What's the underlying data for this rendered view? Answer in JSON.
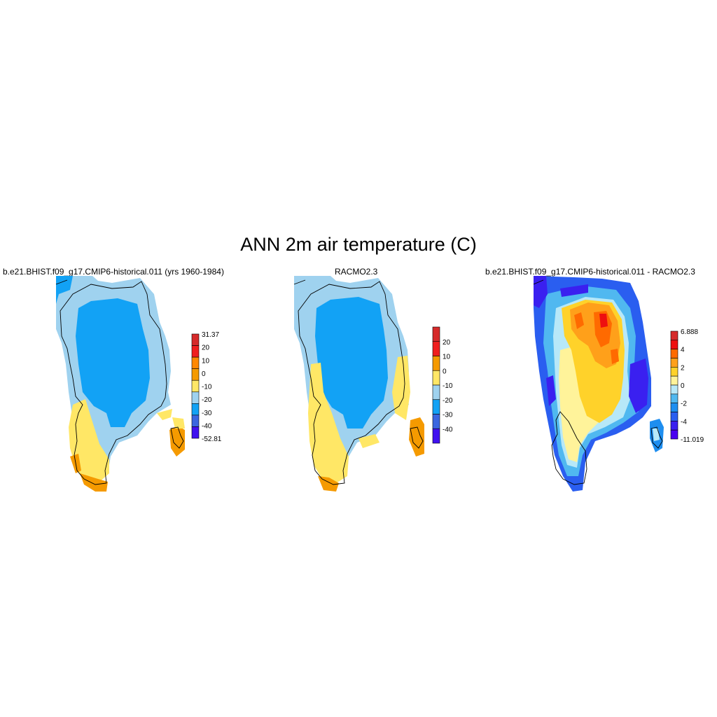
{
  "figure": {
    "title": "ANN 2m air temperature (C)"
  },
  "panels": [
    {
      "title": "b.e21.BHIST.f09_g17.CMIP6-historical.011 (yrs 1960-1984)",
      "colorbar": {
        "labels": [
          "31.37",
          "20",
          "10",
          "0",
          "-10",
          "-20",
          "-30",
          "-40",
          "-52.81"
        ],
        "colors": [
          "#d62a2a",
          "#f01e1e",
          "#ff8800",
          "#f59a00",
          "#ffe766",
          "#9fd2ef",
          "#12a2f5",
          "#3a66e0",
          "#4010f0"
        ]
      }
    },
    {
      "title": "RACMO2.3",
      "colorbar": {
        "labels": [
          "20",
          "10",
          "0",
          "-10",
          "-20",
          "-30",
          "-40"
        ],
        "colors": [
          "#d62a2a",
          "#f01e1e",
          "#f59a00",
          "#ffe766",
          "#9fd2ef",
          "#12a2f5",
          "#3a66e0",
          "#4010f0"
        ]
      }
    },
    {
      "title": "b.e21.BHIST.f09_g17.CMIP6-historical.011 - RACMO2.3",
      "colorbar": {
        "labels": [
          "6.888",
          "4",
          "2",
          "0",
          "-2",
          "-4",
          "-11.019"
        ],
        "colors": [
          "#d62a2a",
          "#ee1010",
          "#ff6a00",
          "#ffa01a",
          "#ffd22a",
          "#fff39a",
          "#b7e8f8",
          "#50b8f0",
          "#1e8ef0",
          "#2a5ef0",
          "#3a20f0",
          "#4a00f0"
        ]
      }
    }
  ]
}
